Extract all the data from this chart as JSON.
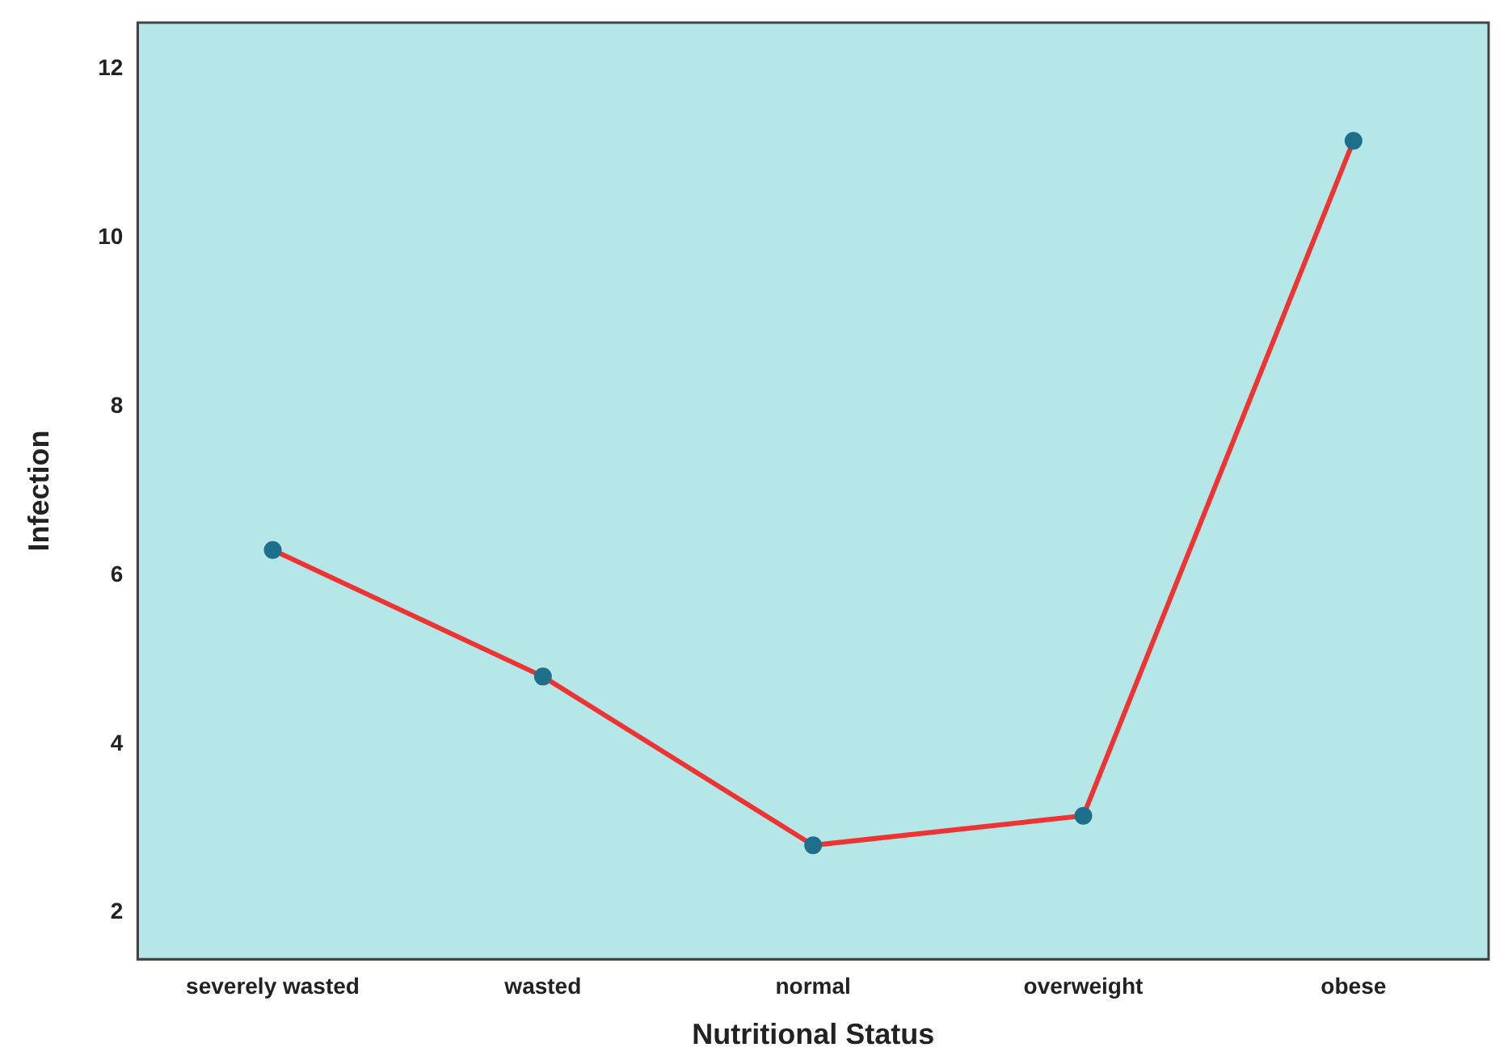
{
  "chart_data": {
    "type": "line",
    "xlabel": "Nutritional Status",
    "ylabel": "Infection",
    "categories": [
      "severely wasted",
      "wasted",
      "normal",
      "overweight",
      "obese"
    ],
    "series": [
      {
        "color": "#ee3333",
        "values": [
          6.3,
          4.8,
          2.8,
          3.15,
          11.15
        ]
      }
    ],
    "ylim": [
      1.45,
      12.55
    ],
    "yticks": [
      2,
      4,
      6,
      8,
      10,
      12
    ],
    "grid": false,
    "legend": false,
    "marker": "circle",
    "line_style": "solid"
  }
}
